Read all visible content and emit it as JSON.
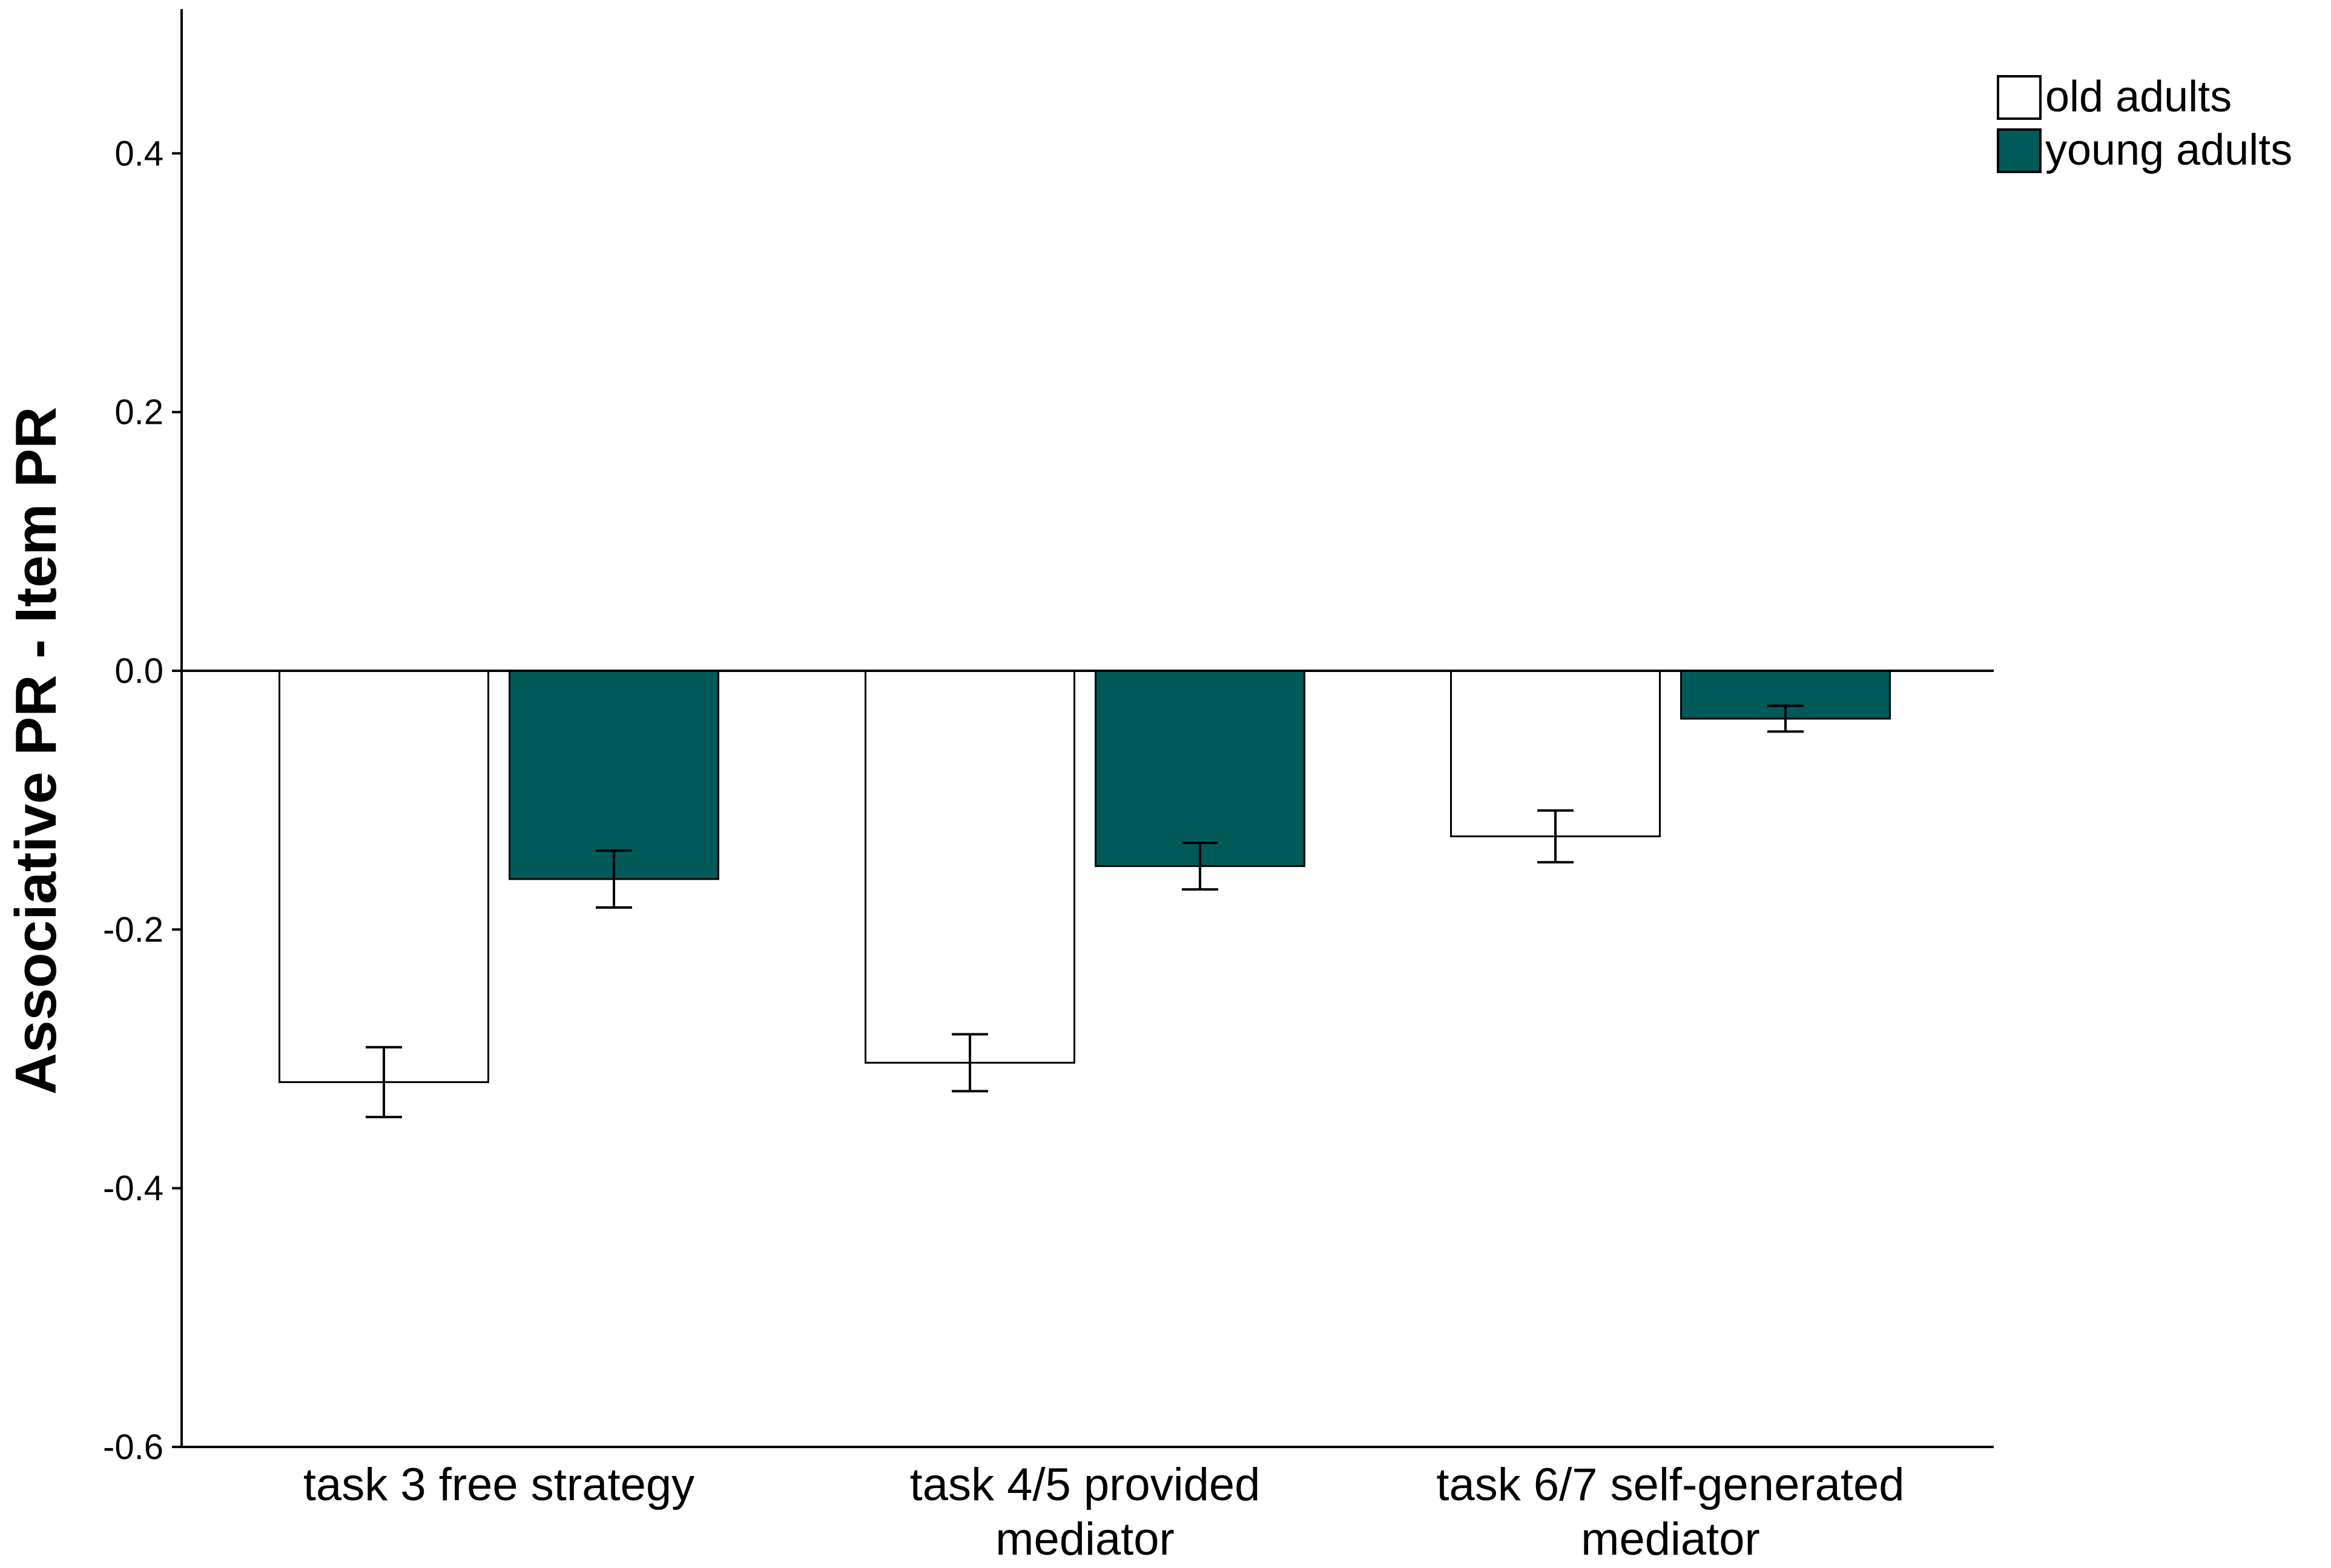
{
  "chart_data": {
    "type": "bar",
    "title": "",
    "xlabel": "",
    "ylabel": "Associative PR - Item PR",
    "ylim": [
      -0.6,
      0.5
    ],
    "yticks": [
      -0.6,
      -0.4,
      -0.2,
      0.0,
      0.2,
      0.4
    ],
    "ytick_labels": [
      "-0.6",
      "-0.4",
      "-0.2",
      "0.0",
      "0.2",
      "0.4"
    ],
    "grid": false,
    "legend_position": "top-right",
    "categories": [
      [
        "task 3 free strategy"
      ],
      [
        "task 4/5 provided",
        "mediator"
      ],
      [
        "task 6/7 self-generated",
        "mediator"
      ]
    ],
    "series": [
      {
        "name": "old adults",
        "color": "#ffffff",
        "values": [
          -0.318,
          -0.303,
          -0.128
        ],
        "error": [
          0.027,
          0.022,
          0.02
        ]
      },
      {
        "name": "young adults",
        "color": "#005a5a",
        "values": [
          -0.161,
          -0.151,
          -0.037
        ],
        "error": [
          0.022,
          0.018,
          0.01
        ]
      }
    ]
  }
}
